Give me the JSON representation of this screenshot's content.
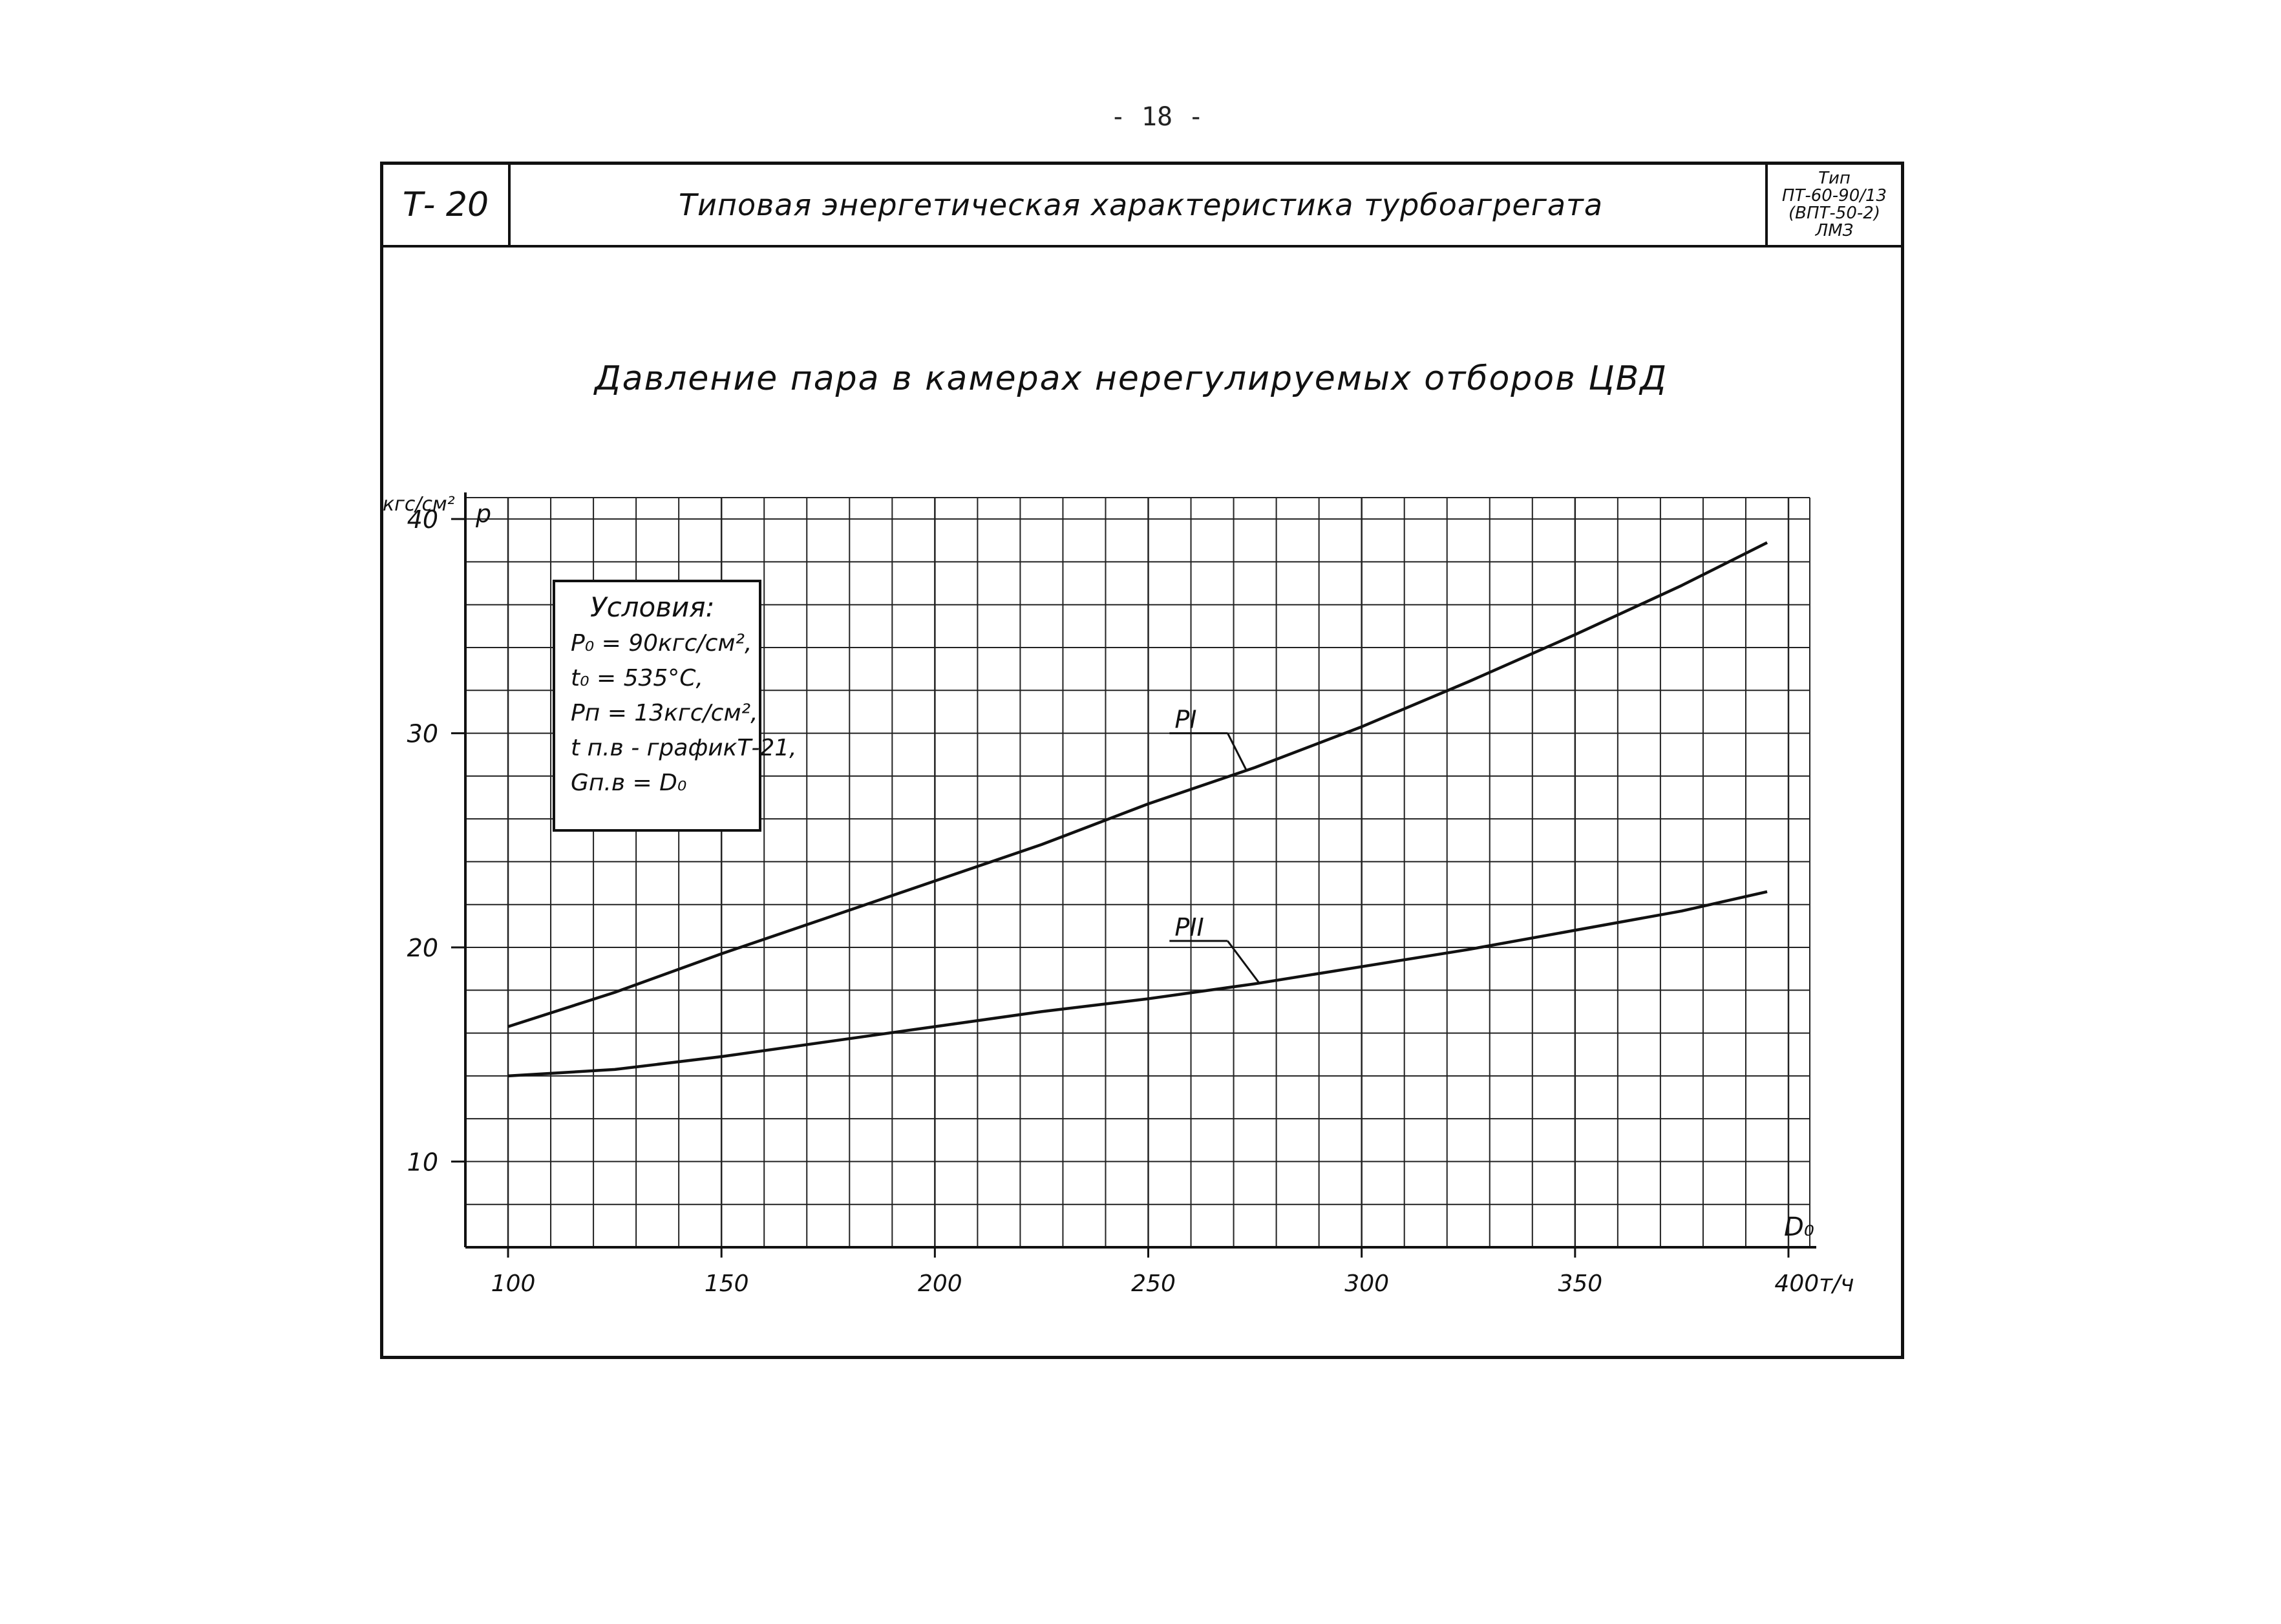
{
  "page": {
    "number": "- 18 -"
  },
  "header": {
    "code": "Т- 20",
    "title": "Типовая энергетическая  характеристика турбоагрегата",
    "type_lines": [
      "Тип",
      "ПТ-60-90/13",
      "(ВПТ-50-2)",
      "ЛМЗ"
    ]
  },
  "conditions": {
    "title": "Условия:",
    "lines": [
      "P₀ = 90кгс/см²,",
      "t₀ = 535°С,",
      "Pп = 13кгс/см²,",
      "t п.в - графикТ-21,",
      "Gп.в = D₀"
    ]
  },
  "chart_data": {
    "type": "line",
    "title": "Давление пара в камерах нерегулируемых отборов ЦВД",
    "ylabel": "р",
    "y_unit": "кгс/см²",
    "xlabel": "D₀",
    "x_unit": "т/ч",
    "xlim": [
      90,
      405
    ],
    "ylim": [
      6,
      41
    ],
    "x_ticks": [
      100,
      150,
      200,
      250,
      300,
      350,
      400
    ],
    "x_tick_labels": [
      "100",
      "150",
      "200",
      "250",
      "300",
      "350",
      "400т/ч"
    ],
    "y_ticks": [
      10,
      20,
      30,
      40
    ],
    "y_tick_labels": [
      "10",
      "20",
      "30",
      "40"
    ],
    "grid": true,
    "series": [
      {
        "name": "PI",
        "x": [
          100,
          125,
          150,
          175,
          200,
          225,
          250,
          275,
          300,
          325,
          350,
          375,
          395
        ],
        "y": [
          16.3,
          17.9,
          19.7,
          21.4,
          23.1,
          24.8,
          26.7,
          28.4,
          30.3,
          32.4,
          34.6,
          36.9,
          38.9
        ]
      },
      {
        "name": "PII",
        "x": [
          100,
          125,
          150,
          175,
          200,
          225,
          250,
          275,
          300,
          325,
          350,
          375,
          395
        ],
        "y": [
          14.0,
          14.3,
          14.9,
          15.6,
          16.3,
          17.0,
          17.6,
          18.3,
          19.1,
          19.9,
          20.8,
          21.7,
          22.6
        ]
      }
    ],
    "series_labels": [
      "PI",
      "PII"
    ]
  }
}
